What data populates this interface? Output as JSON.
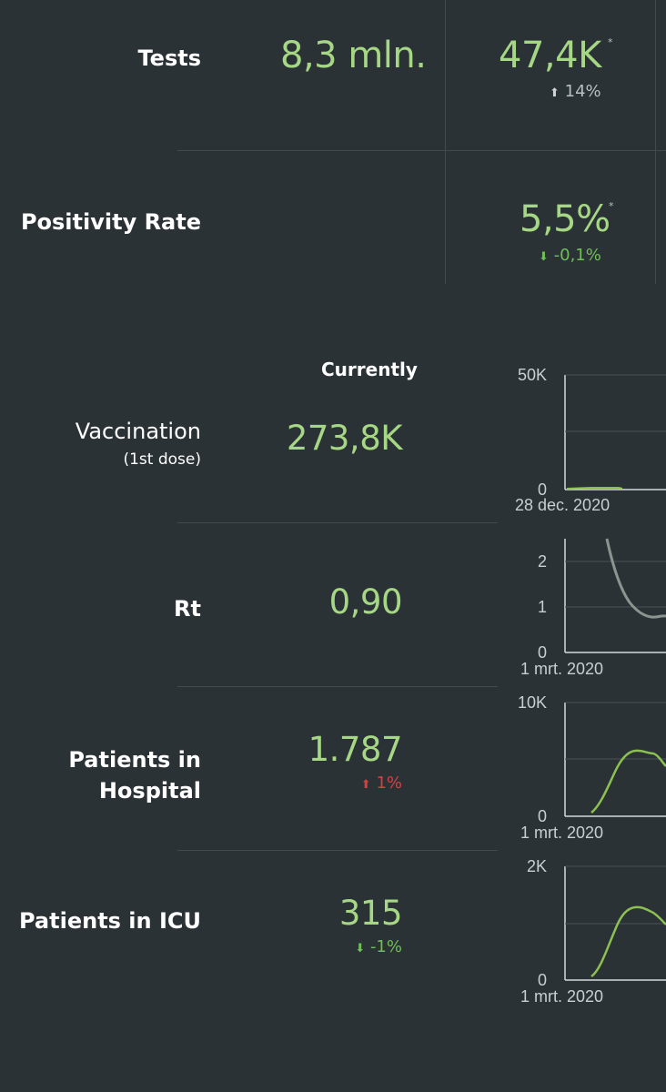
{
  "top": {
    "tests": {
      "label": "Tests",
      "total": "8,3 mln.",
      "recent": "47,4K",
      "asterisk": "*",
      "change": "14%",
      "change_direction": "up"
    },
    "positivity": {
      "label": "Positivity Rate",
      "recent": "5,5%",
      "asterisk": "*",
      "change": "-0,1%",
      "change_direction": "down"
    }
  },
  "lower": {
    "header_currently": "Currently",
    "rows": [
      {
        "label": "Vaccination",
        "sublabel": "(1st dose)",
        "value": "273,8K",
        "change": "",
        "chart": {
          "y_max_label": "50K",
          "y_zero_label": "0",
          "x_start_label": "28 dec. 2020"
        }
      },
      {
        "label": "Rt",
        "value": "0,90",
        "change": "",
        "chart": {
          "y_labels": [
            "2",
            "1",
            "0"
          ],
          "x_start_label": "1 mrt. 2020"
        }
      },
      {
        "label_line1": "Patients in",
        "label_line2": "Hospital",
        "value": "1.787",
        "change": "1%",
        "change_direction": "up",
        "chart": {
          "y_max_label": "10K",
          "y_zero_label": "0",
          "x_start_label": "1 mrt. 2020"
        }
      },
      {
        "label": "Patients in ICU",
        "value": "315",
        "change": "-1%",
        "change_direction": "down",
        "chart": {
          "y_max_label": "2K",
          "y_zero_label": "0",
          "x_start_label": "1 mrt. 2020"
        }
      }
    ]
  },
  "colors": {
    "background": "#2b3236",
    "value_green": "#a6d785",
    "line_green": "#8cc152",
    "rt_line": "#8a9590",
    "up_red": "#d84040",
    "down_green": "#6fbf57"
  }
}
